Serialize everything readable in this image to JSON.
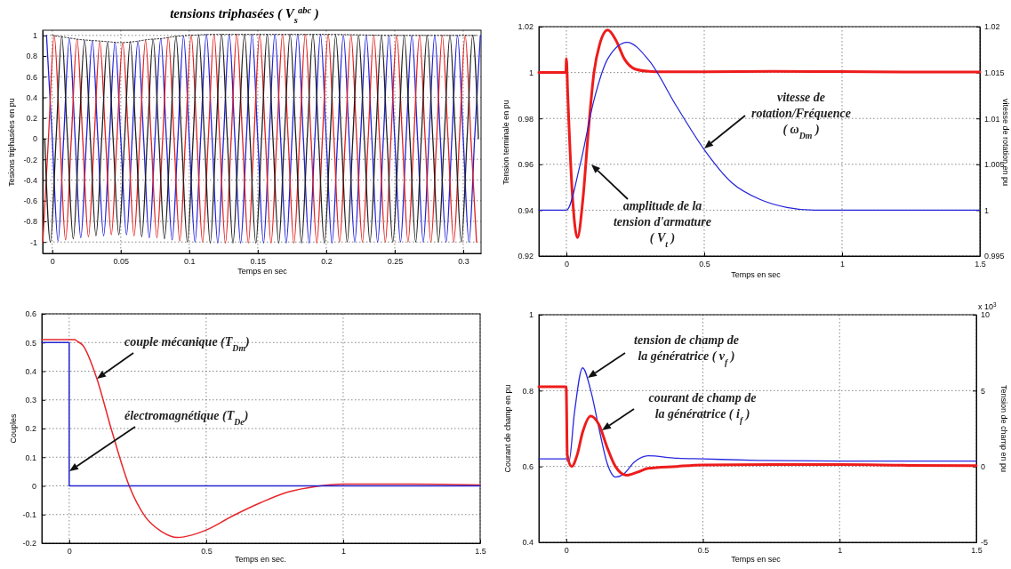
{
  "chart_data": [
    {
      "type": "line",
      "title": "tensions triphasées ( V$_{s}$$^{abc}$ )",
      "xlabel": "Temps en sec",
      "ylabel": "Tesions triphasées en pu",
      "xlim": [
        -0.007,
        0.313
      ],
      "xticks": [
        0,
        0.05,
        0.1,
        0.15,
        0.2,
        0.25,
        0.3
      ],
      "ylim": [
        -1.11,
        1.05
      ],
      "yticks": [
        -1,
        -0.8,
        -0.6,
        -0.4,
        -0.2,
        0,
        0.2,
        0.4,
        0.6,
        0.8,
        1
      ],
      "grid": true,
      "series": [
        {
          "color": "#2020d8",
          "x": [
            -0.0042,
            0,
            0.0042,
            0.0083,
            0.0125,
            0.0167,
            0.0208,
            0.025,
            0.0292,
            0.0333,
            0.0375,
            0.0417,
            0.0458,
            0.05,
            0.0542,
            0.0583,
            0.0625,
            0.0667,
            0.0708,
            0.075,
            0.0792,
            0.0833,
            0.0875,
            0.0917,
            0.0958,
            0.1,
            0.1042,
            0.1083,
            0.1125,
            0.1167,
            0.1208,
            0.125,
            0.1292,
            0.1333,
            0.1375,
            0.1417,
            0.1458,
            0.15,
            0.1542,
            0.1583,
            0.1625,
            0.1667,
            0.1708,
            0.175,
            0.1792,
            0.1833,
            0.1875,
            0.1917,
            0.1958,
            0.2,
            0.2042,
            0.2083,
            0.2125,
            0.2167,
            0.2208,
            0.225,
            0.2292,
            0.2333,
            0.2375,
            0.2417,
            0.2458,
            0.25,
            0.2542,
            0.2583,
            0.2625,
            0.2667,
            0.2708,
            0.275,
            0.2792,
            0.2833,
            0.2875,
            0.2917,
            0.2958,
            0.3,
            0.3042,
            0.3083,
            0.3125
          ],
          "values": [
            1,
            0,
            -0.99,
            0,
            0.97,
            0,
            -0.96,
            0,
            0.95,
            0,
            -0.94,
            0,
            0.93,
            0,
            -0.93,
            0,
            0.94,
            0,
            -0.96,
            0,
            0.97,
            0,
            -0.98,
            0,
            0.99,
            0,
            -1,
            0,
            1.01,
            0,
            -1.01,
            0,
            1.01,
            0,
            -1.01,
            0,
            1.01,
            0,
            -1.01,
            0,
            1.01,
            0,
            -1.01,
            0,
            1.01,
            0,
            -1.01,
            0,
            1.01,
            0,
            -1.01,
            0,
            1,
            0,
            -1,
            0,
            1,
            0,
            -1,
            0,
            1,
            0,
            -1,
            0,
            1,
            0,
            -1,
            0,
            1,
            0,
            -1,
            0,
            1,
            0,
            -1,
            0,
            1
          ]
        },
        {
          "color": "#e02020",
          "x": [
            -0.0069,
            -0.0028,
            0.0014,
            0.0056,
            0.0097,
            0.0139,
            0.0181,
            0.0222,
            0.0264,
            0.0306,
            0.0347,
            0.0389,
            0.0431,
            0.0472,
            0.0514,
            0.0556,
            0.0597,
            0.0639,
            0.0681,
            0.0722,
            0.0764,
            0.0806,
            0.0847,
            0.0889,
            0.0931,
            0.0972,
            0.1014,
            0.1056,
            0.1097,
            0.1139,
            0.1181,
            0.1222,
            0.1264,
            0.1306,
            0.1347,
            0.1389,
            0.1431,
            0.1472,
            0.1514,
            0.1556,
            0.1597,
            0.1639,
            0.1681,
            0.1722,
            0.1764,
            0.1806,
            0.1847,
            0.1889,
            0.1931,
            0.1972,
            0.2014,
            0.2056,
            0.2097,
            0.2139,
            0.2181,
            0.2222,
            0.2264,
            0.2306,
            0.2347,
            0.2389,
            0.2431,
            0.2472,
            0.2514,
            0.2556,
            0.2597,
            0.2639,
            0.2681,
            0.2722,
            0.2764,
            0.2806,
            0.2847,
            0.2889,
            0.2931,
            0.2972,
            0.3014,
            0.3056,
            0.3097
          ],
          "values": [
            -1,
            0,
            1,
            0,
            -0.98,
            0,
            0.96,
            0,
            -0.95,
            0,
            0.94,
            0,
            -0.93,
            0,
            0.93,
            0,
            -0.94,
            0,
            0.95,
            0,
            -0.96,
            0,
            0.98,
            0,
            -0.99,
            0,
            1,
            0,
            -1,
            0,
            1.01,
            0,
            -1.01,
            0,
            1.01,
            0,
            -1.01,
            0,
            1.01,
            0,
            -1.01,
            0,
            1.01,
            0,
            -1.01,
            0,
            1.01,
            0,
            -1.01,
            0,
            1.01,
            0,
            -1,
            0,
            1,
            0,
            -1,
            0,
            1,
            0,
            -1,
            0,
            1,
            0,
            -1,
            0,
            1,
            0,
            -1,
            0,
            1,
            0,
            -1,
            0,
            1,
            0,
            -1
          ]
        },
        {
          "color": "#202020",
          "x": [
            -0.0055,
            -0.0014,
            0.0028,
            0.0069,
            0.0111,
            0.0153,
            0.0194,
            0.0236,
            0.0278,
            0.0319,
            0.0361,
            0.0403,
            0.0444,
            0.0486,
            0.0528,
            0.0569,
            0.0611,
            0.0653,
            0.0694,
            0.0736,
            0.0778,
            0.0819,
            0.0861,
            0.0903,
            0.0944,
            0.0986,
            0.1028,
            0.1069,
            0.1111,
            0.1153,
            0.1194,
            0.1236,
            0.1278,
            0.1319,
            0.1361,
            0.1403,
            0.1444,
            0.1486,
            0.1528,
            0.1569,
            0.1611,
            0.1653,
            0.1694,
            0.1736,
            0.1778,
            0.1819,
            0.1861,
            0.1903,
            0.1944,
            0.1986,
            0.2028,
            0.2069,
            0.2111,
            0.2153,
            0.2194,
            0.2236,
            0.2278,
            0.2319,
            0.2361,
            0.2403,
            0.2444,
            0.2486,
            0.2528,
            0.2569,
            0.2611,
            0.2653,
            0.2694,
            0.2736,
            0.2778,
            0.2819,
            0.2861,
            0.2903,
            0.2944,
            0.2986,
            0.3028,
            0.3069,
            0.3111
          ],
          "values": [
            0,
            -1,
            0,
            0.99,
            0,
            -0.97,
            0,
            0.95,
            0,
            -0.94,
            0,
            0.93,
            0,
            -0.93,
            0,
            0.94,
            0,
            -0.95,
            0,
            0.96,
            0,
            -0.97,
            0,
            0.99,
            0,
            -1,
            0,
            1,
            0,
            -1.01,
            0,
            1.01,
            0,
            -1.01,
            0,
            1.01,
            0,
            -1.01,
            0,
            1.01,
            0,
            -1.01,
            0,
            1.01,
            0,
            -1.01,
            0,
            1.01,
            0,
            -1.01,
            0,
            1,
            0,
            -1,
            0,
            1,
            0,
            -1,
            0,
            1,
            0,
            -1,
            0,
            1,
            0,
            -1,
            0,
            1,
            0,
            -1,
            0,
            1,
            0,
            -1,
            0,
            1,
            0
          ]
        },
        {
          "color": "#202020",
          "line_style": "dotted",
          "x": [
            0,
            0.01,
            0.02,
            0.03,
            0.04,
            0.05,
            0.06,
            0.07,
            0.08,
            0.09,
            0.1,
            0.12,
            0.15,
            0.2,
            0.25,
            0.31
          ],
          "values": [
            1,
            0.98,
            0.96,
            0.95,
            0.94,
            0.93,
            0.94,
            0.96,
            0.97,
            0.99,
            1,
            1.01,
            1.01,
            1.01,
            1,
            1
          ]
        }
      ]
    },
    {
      "type": "line",
      "xlabel": "Temps en sec",
      "ylabel": "Tension terminale en pu",
      "y2label": "vitesse de rotation en pu",
      "xlim": [
        -0.1,
        1.5
      ],
      "xticks": [
        0,
        0.5,
        1,
        1.5
      ],
      "ylim": [
        0.92,
        1.02
      ],
      "yticks": [
        0.92,
        0.94,
        0.96,
        0.98,
        1,
        1.02
      ],
      "y2lim": [
        0.995,
        1.02
      ],
      "y2ticks": [
        0.995,
        1,
        1.005,
        1.01,
        1.015,
        1.02
      ],
      "grid": true,
      "series": [
        {
          "color": "#ee1c1c",
          "x": [
            -0.1,
            -0.002,
            0,
            0.005,
            0.02,
            0.04,
            0.06,
            0.08,
            0.1,
            0.12,
            0.15,
            0.18,
            0.21,
            0.25,
            0.3,
            0.35,
            0.5,
            0.75,
            1,
            1.25,
            1.5
          ],
          "values": [
            1,
            1,
            1.006,
            0.99,
            0.95,
            0.928,
            0.945,
            0.975,
            1,
            1.012,
            1.0185,
            1.014,
            1.006,
            1.0015,
            1.0005,
            1.0003,
            1.0003,
            1.0005,
            1.0004,
            1.0002,
            1.0002
          ]
        },
        {
          "color": "#2323d8",
          "axis": "y2",
          "x": [
            -0.1,
            0,
            0.05,
            0.1,
            0.15,
            0.22,
            0.3,
            0.4,
            0.5,
            0.6,
            0.7,
            0.8,
            0.9,
            1.5
          ],
          "values": [
            1,
            1,
            1.005,
            1.012,
            1.0165,
            1.0183,
            1.0163,
            1.0113,
            1.0066,
            1.003,
            1.0012,
            1.0003,
            1,
            1
          ]
        }
      ],
      "annotations": [
        "vitesse de\nrotation/Fréquence\n( ω$_{Dm}$ )",
        "amplitude de la\ntension d'armature\n( V$_{t}$ )"
      ]
    },
    {
      "type": "line",
      "xlabel": "Temps en sec.",
      "ylabel": "Couples",
      "xlim": [
        -0.1,
        1.5
      ],
      "xticks": [
        0,
        0.5,
        1,
        1.5
      ],
      "ylim": [
        -0.2,
        0.6
      ],
      "yticks": [
        -0.2,
        -0.1,
        0,
        0.1,
        0.2,
        0.3,
        0.4,
        0.5,
        0.6
      ],
      "grid": true,
      "series": [
        {
          "color": "#e8262a",
          "x": [
            -0.1,
            0.02,
            0.03,
            0.05,
            0.1,
            0.154,
            0.219,
            0.278,
            0.337,
            0.396,
            0.45,
            0.5,
            0.6,
            0.7,
            0.8,
            0.9,
            1,
            1.25,
            1.5
          ],
          "values": [
            0.51,
            0.51,
            0.504,
            0.49,
            0.377,
            0.197,
            0,
            -0.108,
            -0.159,
            -0.18,
            -0.171,
            -0.154,
            -0.103,
            -0.058,
            -0.021,
            -0.002,
            0.006,
            0.006,
            0.003
          ]
        },
        {
          "color": "#2626d0",
          "x": [
            -0.1,
            0,
            0,
            1.5
          ],
          "values": [
            0.5,
            0.5,
            0,
            0
          ]
        }
      ],
      "annotations": [
        "couple mécanique (T$_{Dm}$)",
        "électromagnétique (T$_{De}$)"
      ]
    },
    {
      "type": "line",
      "xlabel": "Temps en sec",
      "ylabel": "Courant de champ en pu",
      "y2label": "Tension de champ en pu",
      "xlim": [
        -0.1,
        1.5
      ],
      "xticks": [
        0,
        0.5,
        1,
        1.5
      ],
      "ylim": [
        0.4,
        1
      ],
      "yticks": [
        0.4,
        0.6,
        0.8,
        1
      ],
      "y2lim": [
        -5,
        10
      ],
      "y2ticks": [
        -5,
        0,
        5,
        10
      ],
      "grid": true,
      "series": [
        {
          "color": "#2828e0",
          "axis": "y2",
          "x": [
            -0.1,
            0,
            0.01,
            0.03,
            0.06,
            0.09,
            0.12,
            0.15,
            0.18,
            0.21,
            0.25,
            0.3,
            0.4,
            0.5,
            0.7,
            1,
            1.5
          ],
          "values": [
            0.5,
            0.5,
            0.3,
            3.5,
            6.5,
            5,
            2.5,
            0.2,
            -0.7,
            -0.5,
            0.3,
            0.7,
            0.55,
            0.5,
            0.4,
            0.35,
            0.35
          ]
        },
        {
          "color": "#ee1c1c",
          "x": [
            -0.1,
            0,
            0.004,
            0.02,
            0.04,
            0.06,
            0.09,
            0.12,
            0.15,
            0.18,
            0.22,
            0.26,
            0.3,
            0.4,
            0.5,
            0.75,
            1,
            1.25,
            1.5
          ],
          "values": [
            0.81,
            0.81,
            0.63,
            0.6,
            0.63,
            0.69,
            0.733,
            0.71,
            0.65,
            0.6,
            0.577,
            0.585,
            0.595,
            0.6,
            0.604,
            0.605,
            0.605,
            0.603,
            0.602
          ]
        }
      ],
      "annotations": [
        "tension de champ de\nla génératrice ( v$_{f}$ )",
        "courant de champ de\nla génératrice ( i$_{f}$ )",
        "x 10$^{3}$"
      ]
    }
  ]
}
